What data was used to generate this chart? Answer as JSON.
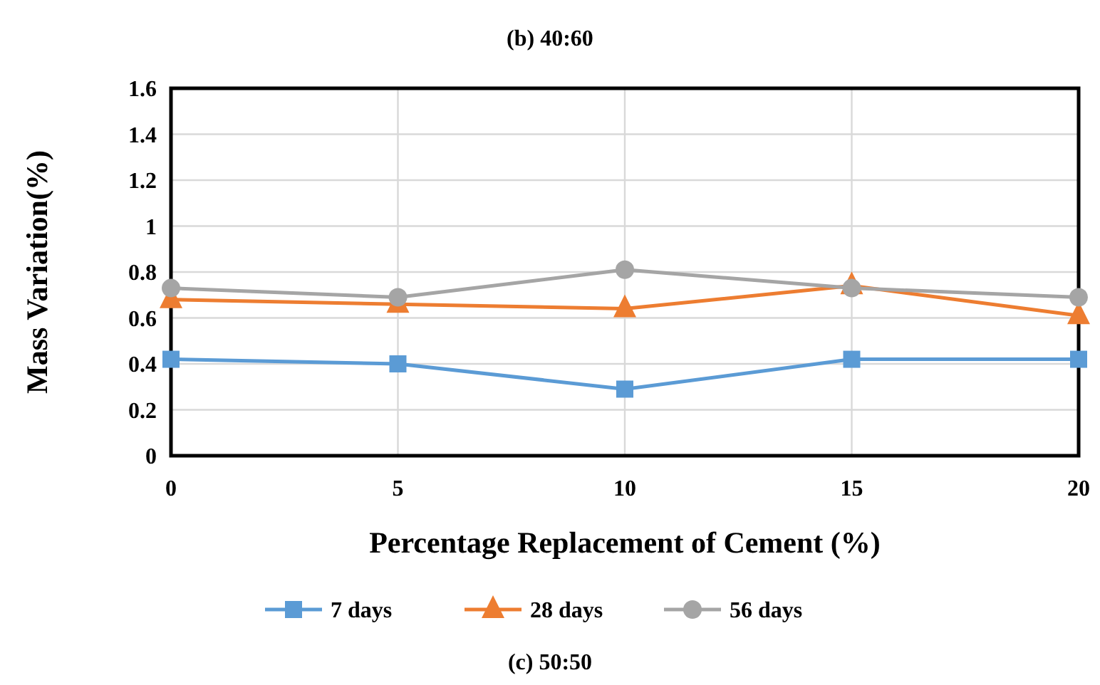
{
  "chart_data": {
    "type": "line",
    "title": "(b) 40:60",
    "xlabel": "Percentage Replacement of Cement (%)",
    "ylabel": "Mass Variation(%)",
    "x": [
      0,
      5,
      10,
      15,
      20
    ],
    "series": [
      {
        "name": "7 days",
        "color": "#5b9bd5",
        "marker": "square",
        "values": [
          0.42,
          0.4,
          0.29,
          0.42,
          0.42
        ]
      },
      {
        "name": "28 days",
        "color": "#ed7d31",
        "marker": "triangle",
        "values": [
          0.68,
          0.66,
          0.64,
          0.74,
          0.61
        ]
      },
      {
        "name": "56 days",
        "color": "#a5a5a5",
        "marker": "circle",
        "values": [
          0.73,
          0.69,
          0.81,
          0.73,
          0.69
        ]
      }
    ],
    "xlim": [
      0,
      20
    ],
    "xticks": [
      0,
      5,
      10,
      15,
      20
    ],
    "ylim": [
      0,
      1.6
    ],
    "yticks": [
      0,
      0.2,
      0.4,
      0.6,
      0.8,
      1,
      1.2,
      1.4,
      1.6
    ],
    "grid": true,
    "legend": "bottom",
    "annotations": [
      "(c) 50:50"
    ]
  }
}
